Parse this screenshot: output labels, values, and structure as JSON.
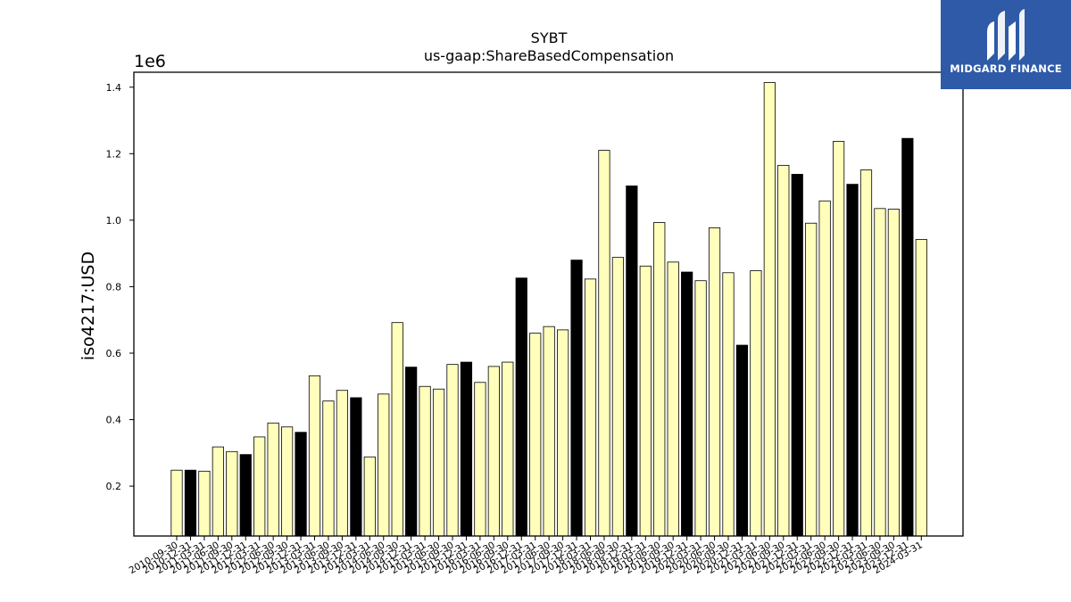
{
  "brand": {
    "name": "MIDGARD FINANCE",
    "bg_color": "#2e5aa8",
    "icon": "midgard-mark-icon"
  },
  "chart_data": {
    "type": "bar",
    "title": "SYBT",
    "subtitle": "us-gaap:ShareBasedCompensation",
    "ylabel": "iso4217:USD",
    "xlabel": "",
    "y_offset_label": "1e6",
    "y_scale": 1000000,
    "ylim": [
      0.05,
      1.445
    ],
    "yticks": [
      0.2,
      0.4,
      0.6,
      0.8,
      1.0,
      1.2,
      1.4
    ],
    "grid": false,
    "legend": "none",
    "colors": {
      "quarterly": "#ffffbb",
      "annual": "#000000",
      "edge": "#000000"
    },
    "categories": [
      "2010-09-30",
      "2010-12-31",
      "2011-03-31",
      "2011-06-30",
      "2011-09-30",
      "2011-12-31",
      "2012-03-31",
      "2012-06-30",
      "2012-09-30",
      "2012-12-31",
      "2013-03-31",
      "2013-06-30",
      "2013-09-30",
      "2013-12-31",
      "2014-03-31",
      "2014-06-30",
      "2014-09-30",
      "2014-12-31",
      "2015-03-31",
      "2015-06-30",
      "2015-09-30",
      "2015-12-31",
      "2016-03-31",
      "2016-06-30",
      "2016-09-30",
      "2016-12-31",
      "2017-03-31",
      "2017-06-30",
      "2017-09-30",
      "2017-12-31",
      "2018-03-31",
      "2018-06-30",
      "2018-09-30",
      "2018-12-31",
      "2019-03-31",
      "2019-06-30",
      "2019-09-30",
      "2019-12-31",
      "2020-03-31",
      "2020-06-30",
      "2020-09-30",
      "2020-12-31",
      "2021-03-31",
      "2021-06-30",
      "2021-09-30",
      "2021-12-31",
      "2022-03-31",
      "2022-06-30",
      "2022-09-30",
      "2022-12-31",
      "2023-03-31",
      "2023-06-30",
      "2023-09-30",
      "2023-12-31",
      "2024-03-31"
    ],
    "values": [
      0.248,
      0.248,
      0.245,
      0.318,
      0.304,
      0.295,
      0.348,
      0.39,
      0.378,
      0.362,
      0.532,
      0.456,
      0.488,
      0.466,
      0.288,
      0.477,
      0.692,
      0.558,
      0.5,
      0.492,
      0.566,
      0.573,
      0.512,
      0.56,
      0.573,
      0.826,
      0.66,
      0.68,
      0.67,
      0.88,
      0.823,
      1.21,
      0.888,
      1.103,
      0.862,
      0.993,
      0.874,
      0.844,
      0.818,
      0.977,
      0.842,
      0.624,
      0.848,
      1.414,
      1.165,
      1.138,
      0.991,
      1.058,
      1.237,
      1.108,
      1.151,
      1.035,
      1.033,
      1.246,
      0.942
    ],
    "period": [
      "Q",
      "FY",
      "Q",
      "Q",
      "Q",
      "FY",
      "Q",
      "Q",
      "Q",
      "FY",
      "Q",
      "Q",
      "Q",
      "FY",
      "Q",
      "Q",
      "Q",
      "FY",
      "Q",
      "Q",
      "Q",
      "FY",
      "Q",
      "Q",
      "Q",
      "FY",
      "Q",
      "Q",
      "Q",
      "FY",
      "Q",
      "Q",
      "Q",
      "FY",
      "Q",
      "Q",
      "Q",
      "FY",
      "Q",
      "Q",
      "Q",
      "FY",
      "Q",
      "Q",
      "Q",
      "FY",
      "Q",
      "Q",
      "Q",
      "FY",
      "Q",
      "Q",
      "Q",
      "FY",
      "Q"
    ]
  }
}
